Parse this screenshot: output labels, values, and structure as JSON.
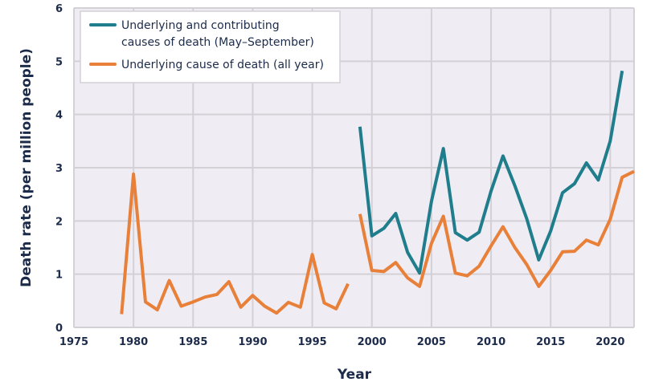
{
  "chart_data": {
    "type": "line",
    "title": "",
    "xlabel": "Year",
    "ylabel": "Death rate (per million people)",
    "xlim": [
      1975,
      2022
    ],
    "ylim": [
      0,
      6
    ],
    "xticks": [
      1975,
      1980,
      1985,
      1990,
      1995,
      2000,
      2005,
      2010,
      2015,
      2020
    ],
    "yticks": [
      0,
      1,
      2,
      3,
      4,
      5,
      6
    ],
    "grid": true,
    "legend_placement": "top-left",
    "background_color": "#efedf3",
    "grid_color": "#d3d1d6",
    "series": [
      {
        "name": "Underlying and contributing causes of death (May–September)",
        "legend_lines": [
          "Underlying and contributing",
          "causes of death (May–September)"
        ],
        "color": "#1f7d8c",
        "segments": [
          {
            "x": [
              1999,
              2000,
              2001,
              2002,
              2003,
              2004,
              2005,
              2006,
              2007,
              2008,
              2009,
              2010,
              2011,
              2012,
              2013,
              2014,
              2015,
              2016,
              2017,
              2018,
              2019,
              2020,
              2021
            ],
            "y": [
              3.77,
              1.72,
              1.86,
              2.14,
              1.41,
              1.02,
              2.37,
              3.36,
              1.78,
              1.64,
              1.79,
              2.56,
              3.22,
              2.66,
              2.04,
              1.27,
              1.81,
              2.53,
              2.7,
              3.09,
              2.77,
              3.5,
              4.82
            ]
          }
        ]
      },
      {
        "name": "Underlying cause of death (all year)",
        "legend_lines": [
          "Underlying cause of death (all year)"
        ],
        "color": "#e8803a",
        "segments": [
          {
            "x": [
              1979,
              1980,
              1981,
              1982,
              1983,
              1984,
              1985,
              1986,
              1987,
              1988,
              1989,
              1990,
              1991,
              1992,
              1993,
              1994,
              1995,
              1996,
              1997,
              1998
            ],
            "y": [
              0.25,
              2.88,
              0.48,
              0.33,
              0.88,
              0.4,
              0.48,
              0.57,
              0.62,
              0.86,
              0.38,
              0.6,
              0.4,
              0.27,
              0.47,
              0.38,
              1.37,
              0.46,
              0.35,
              0.82
            ]
          },
          {
            "x": [
              1999,
              2000,
              2001,
              2002,
              2003,
              2004,
              2005,
              2006,
              2007,
              2008,
              2009,
              2010,
              2011,
              2012,
              2013,
              2014,
              2015,
              2016,
              2017,
              2018,
              2019,
              2020,
              2021,
              2022
            ],
            "y": [
              2.13,
              1.07,
              1.05,
              1.22,
              0.93,
              0.77,
              1.58,
              2.09,
              1.02,
              0.97,
              1.15,
              1.53,
              1.89,
              1.5,
              1.18,
              0.77,
              1.07,
              1.42,
              1.43,
              1.64,
              1.55,
              2.03,
              2.82,
              2.93
            ]
          }
        ]
      }
    ]
  }
}
